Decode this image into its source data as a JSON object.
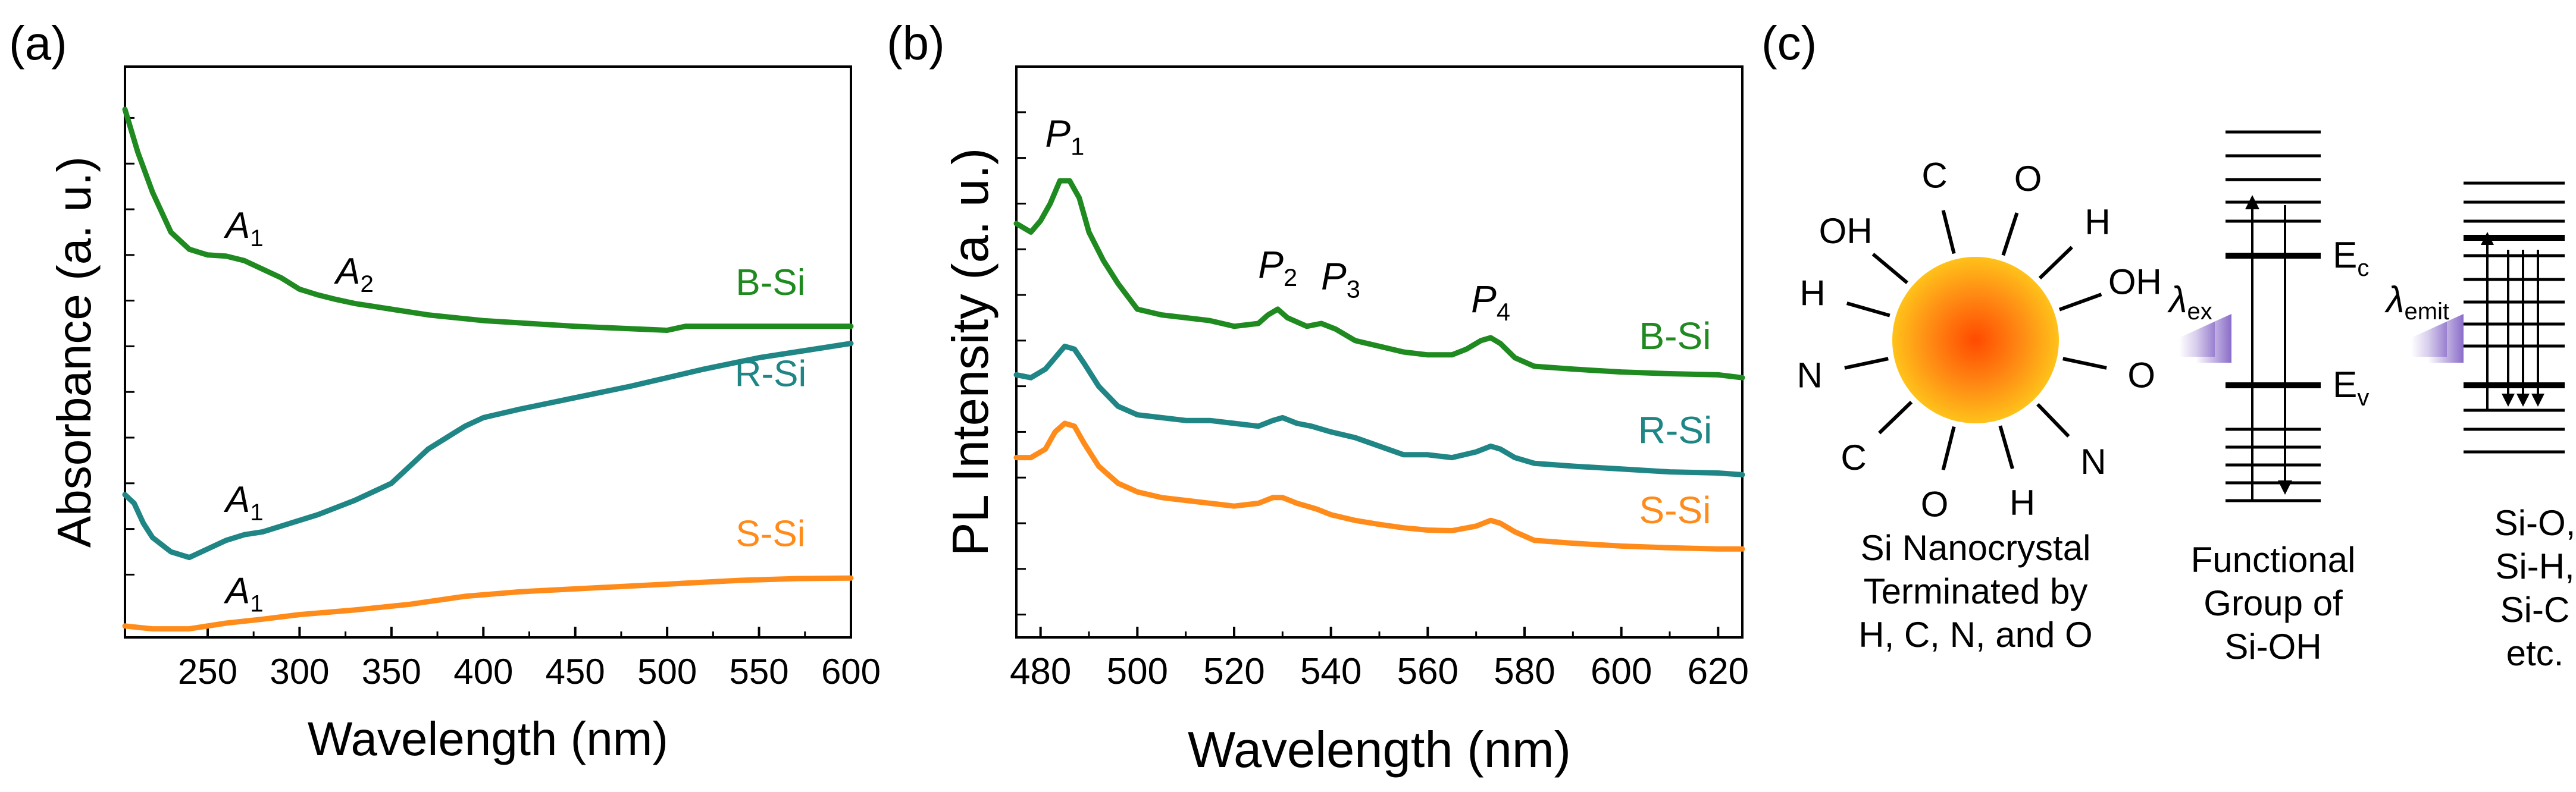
{
  "colors": {
    "green": "#1f8a1f",
    "teal": "#1f8585",
    "orange": "#ff8c1a",
    "violet": "#8a6cc8",
    "axis": "#000000"
  },
  "panel_labels": {
    "a": "(a)",
    "b": "(b)",
    "c": "(c)"
  },
  "chart_data": [
    {
      "id": "a",
      "type": "line",
      "xlabel": "Wavelength (nm)",
      "ylabel": "Absorbance (a. u.)",
      "xlim": [
        205,
        600
      ],
      "ylim": [
        0,
        1
      ],
      "xticks": [
        250,
        300,
        350,
        400,
        450,
        500,
        550,
        600
      ],
      "series": [
        {
          "name": "B-Si",
          "color": "green",
          "x": [
            205,
            212,
            220,
            230,
            240,
            250,
            260,
            270,
            280,
            290,
            300,
            310,
            320,
            330,
            340,
            350,
            370,
            400,
            450,
            500,
            510,
            550,
            600
          ],
          "values": [
            0.925,
            0.85,
            0.78,
            0.71,
            0.68,
            0.67,
            0.668,
            0.66,
            0.645,
            0.63,
            0.61,
            0.6,
            0.592,
            0.585,
            0.58,
            0.575,
            0.565,
            0.555,
            0.545,
            0.538,
            0.545,
            0.545,
            0.545
          ]
        },
        {
          "name": "R-Si",
          "color": "teal",
          "x": [
            205,
            210,
            215,
            220,
            230,
            240,
            250,
            260,
            270,
            280,
            290,
            300,
            310,
            330,
            350,
            360,
            370,
            380,
            390,
            400,
            420,
            450,
            480,
            500,
            520,
            550,
            570,
            600
          ],
          "values": [
            0.25,
            0.235,
            0.2,
            0.175,
            0.15,
            0.14,
            0.155,
            0.17,
            0.18,
            0.185,
            0.195,
            0.205,
            0.215,
            0.24,
            0.27,
            0.3,
            0.33,
            0.35,
            0.37,
            0.385,
            0.4,
            0.42,
            0.44,
            0.455,
            0.47,
            0.49,
            0.5,
            0.515
          ]
        },
        {
          "name": "S-Si",
          "color": "orange",
          "x": [
            205,
            220,
            240,
            260,
            280,
            300,
            330,
            360,
            390,
            420,
            450,
            480,
            510,
            540,
            570,
            600
          ],
          "values": [
            0.02,
            0.015,
            0.015,
            0.025,
            0.032,
            0.04,
            0.048,
            0.058,
            0.072,
            0.08,
            0.085,
            0.09,
            0.095,
            0.1,
            0.103,
            0.104
          ]
        }
      ],
      "curve_labels": [
        "B-Si",
        "R-Si",
        "S-Si"
      ],
      "annotations": [
        {
          "base": "A",
          "sub": "1",
          "x": 270,
          "y": 0.7
        },
        {
          "base": "A",
          "sub": "2",
          "x": 330,
          "y": 0.62
        },
        {
          "base": "A",
          "sub": "1",
          "x": 270,
          "y": 0.22
        },
        {
          "base": "A",
          "sub": "1",
          "x": 270,
          "y": 0.06
        }
      ]
    },
    {
      "id": "b",
      "type": "line",
      "xlabel": "Wavelength (nm)",
      "ylabel": "PL Intensity (a. u.)",
      "xlim": [
        475,
        625
      ],
      "ylim": [
        0,
        1
      ],
      "xticks": [
        480,
        500,
        520,
        540,
        560,
        580,
        600,
        620
      ],
      "series": [
        {
          "name": "B-Si",
          "color": "green",
          "x": [
            475,
            478,
            480,
            482,
            484,
            486,
            488,
            490,
            493,
            496,
            500,
            505,
            510,
            515,
            520,
            525,
            527,
            529,
            531,
            535,
            538,
            541,
            545,
            550,
            555,
            560,
            565,
            568,
            571,
            573,
            575,
            578,
            582,
            590,
            600,
            610,
            620,
            625
          ],
          "values": [
            0.725,
            0.71,
            0.73,
            0.76,
            0.8,
            0.8,
            0.77,
            0.71,
            0.66,
            0.62,
            0.575,
            0.565,
            0.56,
            0.555,
            0.545,
            0.55,
            0.565,
            0.575,
            0.56,
            0.545,
            0.55,
            0.54,
            0.52,
            0.51,
            0.5,
            0.495,
            0.495,
            0.505,
            0.52,
            0.525,
            0.515,
            0.49,
            0.475,
            0.47,
            0.465,
            0.462,
            0.46,
            0.455
          ]
        },
        {
          "name": "R-Si",
          "color": "teal",
          "x": [
            475,
            478,
            481,
            483,
            485,
            487,
            489,
            492,
            496,
            500,
            505,
            510,
            515,
            520,
            525,
            528,
            530,
            533,
            536,
            540,
            545,
            550,
            555,
            560,
            565,
            570,
            573,
            575,
            578,
            582,
            590,
            600,
            610,
            620,
            625
          ],
          "values": [
            0.46,
            0.455,
            0.47,
            0.49,
            0.51,
            0.505,
            0.48,
            0.44,
            0.405,
            0.39,
            0.385,
            0.38,
            0.38,
            0.375,
            0.37,
            0.38,
            0.385,
            0.375,
            0.37,
            0.36,
            0.35,
            0.335,
            0.32,
            0.32,
            0.315,
            0.325,
            0.335,
            0.33,
            0.315,
            0.305,
            0.3,
            0.295,
            0.29,
            0.288,
            0.285
          ]
        },
        {
          "name": "S-Si",
          "color": "orange",
          "x": [
            475,
            478,
            481,
            483,
            485,
            487,
            489,
            492,
            496,
            500,
            505,
            510,
            515,
            520,
            525,
            528,
            530,
            533,
            537,
            540,
            545,
            550,
            555,
            560,
            565,
            570,
            573,
            575,
            578,
            582,
            590,
            600,
            610,
            620,
            625
          ],
          "values": [
            0.315,
            0.315,
            0.33,
            0.36,
            0.375,
            0.37,
            0.34,
            0.3,
            0.27,
            0.255,
            0.245,
            0.24,
            0.235,
            0.23,
            0.235,
            0.245,
            0.245,
            0.235,
            0.225,
            0.215,
            0.205,
            0.198,
            0.192,
            0.188,
            0.187,
            0.195,
            0.205,
            0.2,
            0.185,
            0.17,
            0.165,
            0.16,
            0.157,
            0.155,
            0.155
          ]
        }
      ],
      "curve_labels": [
        "B-Si",
        "R-Si",
        "S-Si"
      ],
      "annotations": [
        {
          "base": "P",
          "sub": "1",
          "x": 485,
          "y": 0.86
        },
        {
          "base": "P",
          "sub": "2",
          "x": 529,
          "y": 0.63
        },
        {
          "base": "P",
          "sub": "3",
          "x": 542,
          "y": 0.61
        },
        {
          "base": "P",
          "sub": "4",
          "x": 573,
          "y": 0.57
        }
      ]
    }
  ],
  "diagram_c": {
    "nanocrystal_ligands": [
      "C",
      "O",
      "H",
      "OH",
      "O",
      "N",
      "H",
      "O",
      "C",
      "N",
      "H",
      "OH"
    ],
    "caption_1": [
      "Si Nanocrystal",
      "Terminated by",
      "H, C, N, and O"
    ],
    "caption_2": [
      "Functional",
      "Group of",
      "Si-OH"
    ],
    "caption_3": [
      "Si-O,",
      "Si-H,",
      "Si-C",
      "etc."
    ],
    "ec_label": {
      "base": "E",
      "sub": "c"
    },
    "ev_label": {
      "base": "E",
      "sub": "v"
    },
    "lambda_ex": {
      "base": "λ",
      "sub": "ex"
    },
    "lambda_emit": {
      "base": "λ",
      "sub": "emit"
    }
  }
}
